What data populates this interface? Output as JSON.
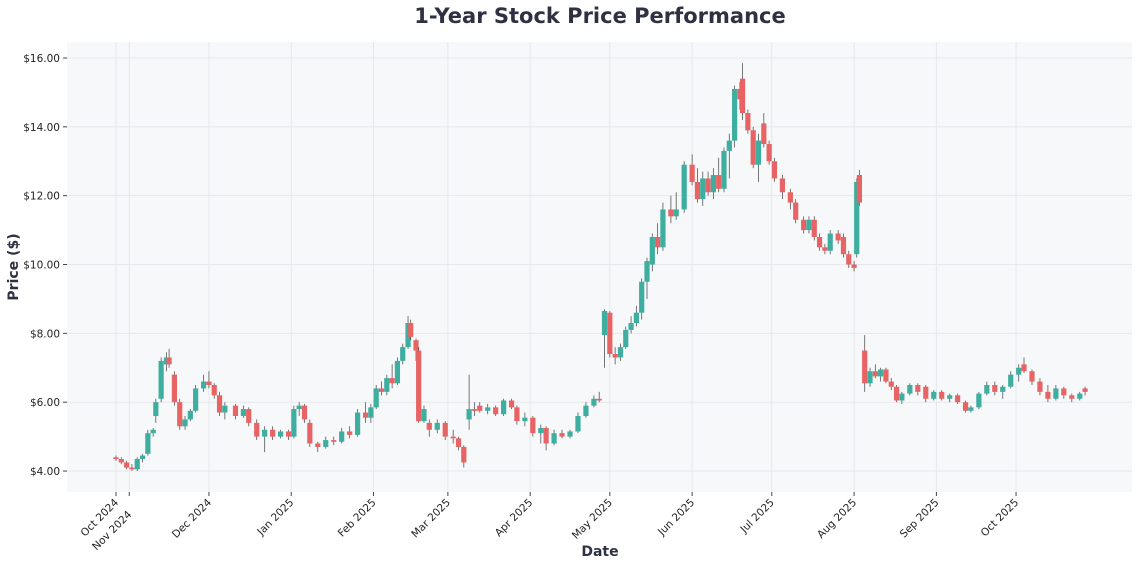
{
  "chart_data": {
    "type": "candlestick",
    "title": "1-Year Stock Price Performance",
    "xlabel": "Date",
    "ylabel": "Price ($)",
    "ylim": [
      3.39,
      16.46
    ],
    "yticks": [
      "$4.00",
      "$6.00",
      "$8.00",
      "$10.00",
      "$12.00",
      "$14.00",
      "$16.00"
    ],
    "ytick_values": [
      4,
      6,
      8,
      10,
      12,
      14,
      16
    ],
    "xticks": [
      {
        "label": "Oct 2024",
        "date": "2024-10-27"
      },
      {
        "label": "Nov 2024",
        "date": "2024-11-01"
      },
      {
        "label": "Dec 2024",
        "date": "2024-12-01"
      },
      {
        "label": "Jan 2025",
        "date": "2025-01-01"
      },
      {
        "label": "Feb 2025",
        "date": "2025-02-01"
      },
      {
        "label": "Mar 2025",
        "date": "2025-03-01"
      },
      {
        "label": "Apr 2025",
        "date": "2025-04-01"
      },
      {
        "label": "May 2025",
        "date": "2025-05-01"
      },
      {
        "label": "Jun 2025",
        "date": "2025-06-01"
      },
      {
        "label": "Jul 2025",
        "date": "2025-07-01"
      },
      {
        "label": "Aug 2025",
        "date": "2025-08-01"
      },
      {
        "label": "Sep 2025",
        "date": "2025-09-01"
      },
      {
        "label": "Oct 2025",
        "date": "2025-10-01"
      }
    ],
    "grid": true,
    "colors": {
      "up": "#3dae9f",
      "down": "#e86464",
      "wick": "#555555",
      "plot_bg": "#f7f8fa",
      "grid": "#e6e8ec"
    },
    "candles_fields": [
      "date",
      "open",
      "high",
      "low",
      "close"
    ],
    "candles": [
      [
        "2024-10-27",
        4.4,
        4.45,
        4.3,
        4.35
      ],
      [
        "2024-10-29",
        4.35,
        4.4,
        4.2,
        4.25
      ],
      [
        "2024-10-31",
        4.25,
        4.3,
        4.05,
        4.1
      ],
      [
        "2024-11-02",
        4.1,
        4.2,
        4.0,
        4.05
      ],
      [
        "2024-11-04",
        4.05,
        4.4,
        4.0,
        4.35
      ],
      [
        "2024-11-06",
        4.35,
        4.5,
        4.25,
        4.45
      ],
      [
        "2024-11-08",
        4.5,
        5.2,
        4.45,
        5.1
      ],
      [
        "2024-11-10",
        5.1,
        5.25,
        5.0,
        5.2
      ],
      [
        "2024-11-11",
        5.6,
        6.1,
        5.4,
        6.0
      ],
      [
        "2024-11-13",
        6.1,
        7.3,
        6.0,
        7.2
      ],
      [
        "2024-11-15",
        7.1,
        7.45,
        6.9,
        7.3
      ],
      [
        "2024-11-16",
        7.3,
        7.55,
        7.0,
        7.1
      ],
      [
        "2024-11-18",
        6.8,
        6.9,
        5.9,
        6.0
      ],
      [
        "2024-11-20",
        6.0,
        6.1,
        5.2,
        5.3
      ],
      [
        "2024-11-22",
        5.3,
        5.6,
        5.2,
        5.5
      ],
      [
        "2024-11-24",
        5.5,
        5.8,
        5.45,
        5.75
      ],
      [
        "2024-11-26",
        5.75,
        6.5,
        5.7,
        6.4
      ],
      [
        "2024-11-29",
        6.4,
        6.8,
        6.3,
        6.6
      ],
      [
        "2024-12-01",
        6.6,
        6.9,
        6.4,
        6.5
      ],
      [
        "2024-12-03",
        6.5,
        6.55,
        6.1,
        6.2
      ],
      [
        "2024-12-05",
        6.2,
        6.3,
        5.6,
        5.7
      ],
      [
        "2024-12-07",
        5.7,
        6.0,
        5.5,
        5.9
      ],
      [
        "2024-12-11",
        5.9,
        5.95,
        5.5,
        5.6
      ],
      [
        "2024-12-14",
        5.6,
        5.9,
        5.55,
        5.8
      ],
      [
        "2024-12-16",
        5.8,
        5.85,
        5.3,
        5.4
      ],
      [
        "2024-12-19",
        5.4,
        5.5,
        4.9,
        5.0
      ],
      [
        "2024-12-22",
        5.0,
        5.3,
        4.55,
        5.2
      ],
      [
        "2024-12-25",
        5.2,
        5.3,
        4.9,
        5.0
      ],
      [
        "2024-12-28",
        5.0,
        5.2,
        4.95,
        5.15
      ],
      [
        "2024-12-31",
        5.15,
        5.2,
        4.9,
        5.0
      ],
      [
        "2025-01-02",
        5.0,
        5.9,
        4.95,
        5.8
      ],
      [
        "2025-01-04",
        5.8,
        6.0,
        5.6,
        5.9
      ],
      [
        "2025-01-06",
        5.9,
        5.95,
        5.4,
        5.5
      ],
      [
        "2025-01-08",
        5.4,
        5.5,
        4.7,
        4.8
      ],
      [
        "2025-01-11",
        4.8,
        4.85,
        4.55,
        4.7
      ],
      [
        "2025-01-14",
        4.7,
        5.0,
        4.65,
        4.9
      ],
      [
        "2025-01-17",
        4.9,
        5.0,
        4.75,
        4.85
      ],
      [
        "2025-01-20",
        4.85,
        5.25,
        4.8,
        5.15
      ],
      [
        "2025-01-23",
        5.15,
        5.3,
        4.95,
        5.05
      ],
      [
        "2025-01-26",
        5.05,
        5.8,
        5.0,
        5.7
      ],
      [
        "2025-01-29",
        5.7,
        6.0,
        5.4,
        5.55
      ],
      [
        "2025-01-31",
        5.55,
        5.95,
        5.4,
        5.85
      ],
      [
        "2025-02-02",
        5.85,
        6.5,
        5.8,
        6.4
      ],
      [
        "2025-02-04",
        6.4,
        6.6,
        6.2,
        6.3
      ],
      [
        "2025-02-06",
        6.3,
        6.8,
        6.2,
        6.7
      ],
      [
        "2025-02-08",
        6.7,
        7.1,
        6.4,
        6.55
      ],
      [
        "2025-02-10",
        6.55,
        7.3,
        6.5,
        7.2
      ],
      [
        "2025-02-12",
        7.2,
        7.7,
        7.1,
        7.6
      ],
      [
        "2025-02-14",
        7.6,
        8.5,
        7.55,
        8.3
      ],
      [
        "2025-02-15",
        8.3,
        8.4,
        7.8,
        7.9
      ],
      [
        "2025-02-17",
        7.8,
        7.85,
        7.2,
        7.5
      ],
      [
        "2025-02-18",
        7.5,
        7.6,
        5.4,
        5.45
      ],
      [
        "2025-02-20",
        5.45,
        5.9,
        5.4,
        5.8
      ],
      [
        "2025-02-22",
        5.4,
        5.5,
        5.0,
        5.2
      ],
      [
        "2025-02-25",
        5.2,
        5.5,
        5.1,
        5.4
      ],
      [
        "2025-02-28",
        5.4,
        5.45,
        4.9,
        5.0
      ],
      [
        "2025-03-03",
        5.0,
        5.2,
        4.8,
        4.95
      ],
      [
        "2025-03-05",
        4.95,
        5.0,
        4.6,
        4.7
      ],
      [
        "2025-03-07",
        4.7,
        4.75,
        4.1,
        4.25
      ],
      [
        "2025-03-09",
        5.5,
        6.8,
        5.2,
        5.8
      ],
      [
        "2025-03-11",
        5.8,
        6.0,
        5.6,
        5.75
      ],
      [
        "2025-03-13",
        5.9,
        6.0,
        5.7,
        5.75
      ],
      [
        "2025-03-16",
        5.75,
        5.95,
        5.65,
        5.85
      ],
      [
        "2025-03-19",
        5.85,
        5.9,
        5.6,
        5.65
      ],
      [
        "2025-03-22",
        5.65,
        6.1,
        5.6,
        6.05
      ],
      [
        "2025-03-25",
        6.05,
        6.1,
        5.8,
        5.85
      ],
      [
        "2025-03-27",
        5.85,
        5.9,
        5.35,
        5.45
      ],
      [
        "2025-03-30",
        5.45,
        5.7,
        5.3,
        5.55
      ],
      [
        "2025-04-02",
        5.55,
        5.6,
        5.0,
        5.1
      ],
      [
        "2025-04-05",
        5.1,
        5.35,
        4.8,
        5.25
      ],
      [
        "2025-04-07",
        5.25,
        5.3,
        4.6,
        4.8
      ],
      [
        "2025-04-10",
        4.8,
        5.2,
        4.75,
        5.1
      ],
      [
        "2025-04-13",
        5.1,
        5.2,
        4.95,
        5.0
      ],
      [
        "2025-04-16",
        5.0,
        5.2,
        4.95,
        5.15
      ],
      [
        "2025-04-19",
        5.15,
        5.7,
        5.1,
        5.6
      ],
      [
        "2025-04-22",
        5.6,
        6.0,
        5.55,
        5.9
      ],
      [
        "2025-04-25",
        5.9,
        6.2,
        5.85,
        6.1
      ],
      [
        "2025-04-27",
        6.1,
        6.3,
        6.0,
        6.05
      ],
      [
        "2025-04-29",
        7.95,
        8.7,
        7.0,
        8.65
      ],
      [
        "2025-05-01",
        8.6,
        8.65,
        7.3,
        7.4
      ],
      [
        "2025-05-03",
        7.4,
        7.6,
        7.1,
        7.3
      ],
      [
        "2025-05-05",
        7.3,
        7.7,
        7.2,
        7.6
      ],
      [
        "2025-05-07",
        7.6,
        8.2,
        7.55,
        8.1
      ],
      [
        "2025-05-09",
        8.1,
        8.5,
        8.0,
        8.3
      ],
      [
        "2025-05-11",
        8.3,
        8.8,
        8.2,
        8.6
      ],
      [
        "2025-05-13",
        8.6,
        9.6,
        8.4,
        9.5
      ],
      [
        "2025-05-15",
        9.5,
        10.2,
        9.0,
        10.1
      ],
      [
        "2025-05-17",
        10.0,
        10.9,
        9.8,
        10.8
      ],
      [
        "2025-05-19",
        10.8,
        11.2,
        10.3,
        10.5
      ],
      [
        "2025-05-21",
        10.5,
        11.8,
        10.4,
        11.6
      ],
      [
        "2025-05-24",
        11.6,
        12.0,
        11.2,
        11.4
      ],
      [
        "2025-05-26",
        11.4,
        12.1,
        11.3,
        11.6
      ],
      [
        "2025-05-29",
        11.6,
        13.0,
        11.5,
        12.9
      ],
      [
        "2025-06-01",
        12.9,
        13.2,
        12.3,
        12.4
      ],
      [
        "2025-06-03",
        12.4,
        12.8,
        11.8,
        11.9
      ],
      [
        "2025-06-05",
        11.9,
        12.7,
        11.7,
        12.5
      ],
      [
        "2025-06-07",
        12.5,
        12.7,
        12.0,
        12.1
      ],
      [
        "2025-06-09",
        12.1,
        12.8,
        11.9,
        12.6
      ],
      [
        "2025-06-11",
        12.6,
        13.1,
        12.1,
        12.2
      ],
      [
        "2025-06-13",
        12.2,
        13.4,
        12.1,
        13.3
      ],
      [
        "2025-06-15",
        13.3,
        13.8,
        12.5,
        13.6
      ],
      [
        "2025-06-17",
        13.6,
        15.2,
        13.4,
        15.1
      ],
      [
        "2025-06-19",
        15.1,
        15.3,
        14.5,
        14.8
      ],
      [
        "2025-06-20",
        15.4,
        15.85,
        14.2,
        14.4
      ],
      [
        "2025-06-22",
        14.4,
        14.5,
        13.8,
        13.9
      ],
      [
        "2025-06-24",
        13.9,
        14.0,
        12.8,
        12.9
      ],
      [
        "2025-06-26",
        12.9,
        13.8,
        12.4,
        13.6
      ],
      [
        "2025-06-28",
        14.1,
        14.4,
        13.4,
        13.5
      ],
      [
        "2025-06-30",
        13.5,
        13.6,
        12.9,
        13.0
      ],
      [
        "2025-07-02",
        13.0,
        13.1,
        12.4,
        12.5
      ],
      [
        "2025-07-05",
        12.5,
        12.6,
        11.9,
        12.1
      ],
      [
        "2025-07-08",
        12.1,
        12.2,
        11.6,
        11.8
      ],
      [
        "2025-07-10",
        11.8,
        11.9,
        11.2,
        11.3
      ],
      [
        "2025-07-13",
        11.3,
        11.4,
        10.9,
        11.0
      ],
      [
        "2025-07-15",
        11.0,
        11.4,
        10.9,
        11.3
      ],
      [
        "2025-07-17",
        11.3,
        11.4,
        10.7,
        10.8
      ],
      [
        "2025-07-19",
        10.8,
        10.9,
        10.4,
        10.5
      ],
      [
        "2025-07-21",
        10.5,
        10.6,
        10.3,
        10.4
      ],
      [
        "2025-07-23",
        10.4,
        11.0,
        10.3,
        10.9
      ],
      [
        "2025-07-26",
        10.9,
        11.0,
        10.6,
        10.7
      ],
      [
        "2025-07-28",
        10.8,
        10.9,
        10.2,
        10.3
      ],
      [
        "2025-07-30",
        10.3,
        10.4,
        9.9,
        10.0
      ],
      [
        "2025-08-01",
        10.0,
        10.1,
        9.8,
        9.9
      ],
      [
        "2025-08-02",
        10.3,
        12.5,
        10.2,
        12.4
      ],
      [
        "2025-08-03",
        12.6,
        12.75,
        11.7,
        11.8
      ],
      [
        "2025-08-05",
        7.5,
        7.95,
        6.3,
        6.55
      ],
      [
        "2025-08-07",
        6.55,
        7.0,
        6.45,
        6.9
      ],
      [
        "2025-08-09",
        6.9,
        7.1,
        6.7,
        6.75
      ],
      [
        "2025-08-11",
        6.75,
        7.0,
        6.6,
        6.95
      ],
      [
        "2025-08-13",
        6.95,
        7.0,
        6.55,
        6.6
      ],
      [
        "2025-08-15",
        6.6,
        6.7,
        6.35,
        6.45
      ],
      [
        "2025-08-17",
        6.45,
        6.5,
        6.0,
        6.05
      ],
      [
        "2025-08-19",
        6.05,
        6.3,
        5.95,
        6.25
      ],
      [
        "2025-08-22",
        6.25,
        6.55,
        6.2,
        6.5
      ],
      [
        "2025-08-25",
        6.5,
        6.55,
        6.2,
        6.3
      ],
      [
        "2025-08-28",
        6.45,
        6.5,
        6.0,
        6.1
      ],
      [
        "2025-08-31",
        6.1,
        6.35,
        6.05,
        6.3
      ],
      [
        "2025-09-03",
        6.3,
        6.35,
        6.05,
        6.1
      ],
      [
        "2025-09-06",
        6.1,
        6.25,
        6.0,
        6.2
      ],
      [
        "2025-09-09",
        6.2,
        6.25,
        5.95,
        6.0
      ],
      [
        "2025-09-12",
        6.0,
        6.05,
        5.7,
        5.75
      ],
      [
        "2025-09-14",
        5.75,
        5.9,
        5.7,
        5.85
      ],
      [
        "2025-09-17",
        5.85,
        6.3,
        5.8,
        6.25
      ],
      [
        "2025-09-20",
        6.25,
        6.6,
        6.2,
        6.5
      ],
      [
        "2025-09-23",
        6.5,
        6.6,
        6.2,
        6.3
      ],
      [
        "2025-09-26",
        6.3,
        6.5,
        6.1,
        6.45
      ],
      [
        "2025-09-29",
        6.45,
        6.9,
        6.4,
        6.8
      ],
      [
        "2025-10-02",
        6.8,
        7.1,
        6.6,
        7.0
      ],
      [
        "2025-10-04",
        7.1,
        7.3,
        6.85,
        6.9
      ],
      [
        "2025-10-07",
        6.9,
        6.95,
        6.5,
        6.6
      ],
      [
        "2025-10-10",
        6.6,
        6.7,
        6.2,
        6.3
      ],
      [
        "2025-10-13",
        6.3,
        6.5,
        6.0,
        6.1
      ],
      [
        "2025-10-16",
        6.1,
        6.5,
        6.05,
        6.4
      ],
      [
        "2025-10-19",
        6.4,
        6.45,
        6.1,
        6.2
      ],
      [
        "2025-10-22",
        6.2,
        6.25,
        6.0,
        6.1
      ],
      [
        "2025-10-25",
        6.1,
        6.3,
        6.05,
        6.25
      ],
      [
        "2025-10-27",
        6.4,
        6.45,
        6.2,
        6.3
      ]
    ]
  }
}
